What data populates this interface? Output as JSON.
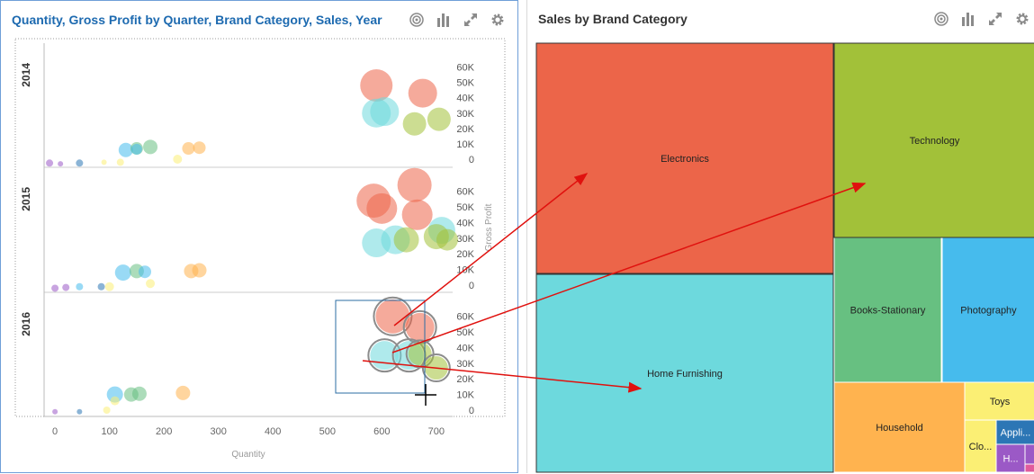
{
  "left_panel": {
    "title": "Quantity, Gross Profit by Quarter, Brand Category, Sales, Year",
    "toolbar_icons": [
      "target-icon",
      "bar-chart-icon",
      "expand-icon",
      "gear-icon"
    ]
  },
  "right_panel": {
    "title": "Sales by Brand Category",
    "toolbar_icons": [
      "target-icon",
      "bar-chart-icon",
      "expand-icon",
      "gear-icon"
    ]
  },
  "colors": {
    "Electronics": "#ec6549",
    "Technology": "#a2c139",
    "Home Furnishing": "#6dd9dd",
    "Books-Stationary": "#67c081",
    "Photography": "#46bbed",
    "Household": "#ffb34f",
    "Toys": "#fbef74",
    "Appliances": "#2c76b5",
    "Health": "#9b59c6",
    "Clothing": "#fbef74",
    "Other": "#e15b9c",
    "selection": "#2b6ca3",
    "annotation": "#e0110e"
  },
  "chart_data": [
    {
      "type": "scatter",
      "title": "Quantity, Gross Profit by Quarter, Brand Category, Sales, Year",
      "xlabel": "Quantity",
      "ylabel": "Gross Profit",
      "xlim": [
        -20,
        730
      ],
      "ylim": [
        0,
        65000
      ],
      "x_ticks": [
        "0",
        "100",
        "200",
        "300",
        "400",
        "500",
        "600",
        "700"
      ],
      "y_ticks": [
        "0",
        "10K",
        "20K",
        "30K",
        "40K",
        "50K",
        "60K"
      ],
      "rows": [
        "2014",
        "2015",
        "2016"
      ],
      "grid": false,
      "series": [
        {
          "row": "2014",
          "points": [
            {
              "x": 590,
              "y": 48000,
              "s": 18,
              "c": "Electronics"
            },
            {
              "x": 675,
              "y": 43000,
              "s": 16,
              "c": "Electronics"
            },
            {
              "x": 590,
              "y": 30000,
              "s": 16,
              "c": "Home Furnishing"
            },
            {
              "x": 605,
              "y": 31000,
              "s": 16,
              "c": "Home Furnishing"
            },
            {
              "x": 660,
              "y": 23000,
              "s": 13,
              "c": "Technology"
            },
            {
              "x": 705,
              "y": 26000,
              "s": 13,
              "c": "Technology"
            },
            {
              "x": 130,
              "y": 6000,
              "s": 8,
              "c": "Photography"
            },
            {
              "x": 150,
              "y": 7000,
              "s": 7,
              "c": "Books-Stationary"
            },
            {
              "x": 175,
              "y": 8000,
              "s": 8,
              "c": "Books-Stationary"
            },
            {
              "x": 150,
              "y": 6500,
              "s": 6,
              "c": "Photography"
            },
            {
              "x": 265,
              "y": 7500,
              "s": 7,
              "c": "Household"
            },
            {
              "x": 245,
              "y": 7000,
              "s": 7,
              "c": "Household"
            },
            {
              "x": 225,
              "y": 0,
              "s": 5,
              "c": "Toys"
            },
            {
              "x": 120,
              "y": -2000,
              "s": 4,
              "c": "Toys"
            },
            {
              "x": 90,
              "y": -2000,
              "s": 3,
              "c": "Toys"
            },
            {
              "x": 45,
              "y": -2500,
              "s": 4,
              "c": "Appliances"
            },
            {
              "x": -10,
              "y": -2500,
              "s": 4,
              "c": "Health"
            },
            {
              "x": 10,
              "y": -3000,
              "s": 3,
              "c": "Health"
            }
          ]
        },
        {
          "row": "2015",
          "points": [
            {
              "x": 660,
              "y": 64000,
              "s": 19,
              "c": "Electronics"
            },
            {
              "x": 585,
              "y": 54000,
              "s": 19,
              "c": "Electronics"
            },
            {
              "x": 600,
              "y": 49000,
              "s": 17,
              "c": "Electronics"
            },
            {
              "x": 665,
              "y": 45000,
              "s": 17,
              "c": "Electronics"
            },
            {
              "x": 590,
              "y": 27000,
              "s": 16,
              "c": "Home Furnishing"
            },
            {
              "x": 625,
              "y": 29000,
              "s": 16,
              "c": "Home Furnishing"
            },
            {
              "x": 710,
              "y": 35000,
              "s": 15,
              "c": "Home Furnishing"
            },
            {
              "x": 645,
              "y": 29000,
              "s": 14,
              "c": "Technology"
            },
            {
              "x": 700,
              "y": 31000,
              "s": 14,
              "c": "Technology"
            },
            {
              "x": 720,
              "y": 29000,
              "s": 12,
              "c": "Technology"
            },
            {
              "x": 125,
              "y": 8000,
              "s": 9,
              "c": "Photography"
            },
            {
              "x": 150,
              "y": 9000,
              "s": 8,
              "c": "Books-Stationary"
            },
            {
              "x": 165,
              "y": 8500,
              "s": 7,
              "c": "Photography"
            },
            {
              "x": 250,
              "y": 9000,
              "s": 8,
              "c": "Household"
            },
            {
              "x": 265,
              "y": 9500,
              "s": 8,
              "c": "Household"
            },
            {
              "x": 175,
              "y": 1000,
              "s": 5,
              "c": "Toys"
            },
            {
              "x": 100,
              "y": -1000,
              "s": 5,
              "c": "Toys"
            },
            {
              "x": 85,
              "y": -1000,
              "s": 4,
              "c": "Appliances"
            },
            {
              "x": 45,
              "y": -1000,
              "s": 4,
              "c": "Photography"
            },
            {
              "x": 20,
              "y": -1500,
              "s": 4,
              "c": "Health"
            },
            {
              "x": 0,
              "y": -2000,
              "s": 4,
              "c": "Health"
            }
          ]
        },
        {
          "row": "2016",
          "points": [
            {
              "x": 620,
              "y": 60000,
              "s": 19,
              "c": "Electronics",
              "sel": true
            },
            {
              "x": 670,
              "y": 53000,
              "s": 16,
              "c": "Electronics",
              "sel": true
            },
            {
              "x": 605,
              "y": 35000,
              "s": 16,
              "c": "Home Furnishing",
              "sel": true
            },
            {
              "x": 650,
              "y": 35000,
              "s": 16,
              "c": "Home Furnishing",
              "sel": true
            },
            {
              "x": 670,
              "y": 36000,
              "s": 13,
              "c": "Technology",
              "sel": true
            },
            {
              "x": 700,
              "y": 27000,
              "s": 13,
              "c": "Technology",
              "sel": true
            },
            {
              "x": 110,
              "y": 10000,
              "s": 9,
              "c": "Photography"
            },
            {
              "x": 140,
              "y": 10000,
              "s": 8,
              "c": "Books-Stationary"
            },
            {
              "x": 155,
              "y": 10500,
              "s": 8,
              "c": "Books-Stationary"
            },
            {
              "x": 235,
              "y": 11000,
              "s": 8,
              "c": "Household"
            },
            {
              "x": 110,
              "y": 6000,
              "s": 5,
              "c": "Toys"
            },
            {
              "x": 95,
              "y": 0,
              "s": 4,
              "c": "Toys"
            },
            {
              "x": 45,
              "y": -1000,
              "s": 3,
              "c": "Appliances"
            },
            {
              "x": 0,
              "y": -1000,
              "s": 3,
              "c": "Health"
            }
          ]
        }
      ]
    },
    {
      "type": "treemap",
      "title": "Sales by Brand Category",
      "cells": [
        {
          "label": "Electronics",
          "c": "Electronics"
        },
        {
          "label": "Technology",
          "c": "Technology"
        },
        {
          "label": "Home Furnishing",
          "c": "Home Furnishing"
        },
        {
          "label": "Books-Stationary",
          "c": "Books-Stationary"
        },
        {
          "label": "Photography",
          "c": "Photography"
        },
        {
          "label": "Household",
          "c": "Household"
        },
        {
          "label": "Toys",
          "c": "Toys"
        },
        {
          "label": "Appli...",
          "c": "Appliances"
        },
        {
          "label": "Clo...",
          "c": "Clothing"
        },
        {
          "label": "H...",
          "c": "Health"
        },
        {
          "label": "",
          "c": "Health"
        },
        {
          "label": "",
          "c": "Other"
        }
      ]
    }
  ]
}
